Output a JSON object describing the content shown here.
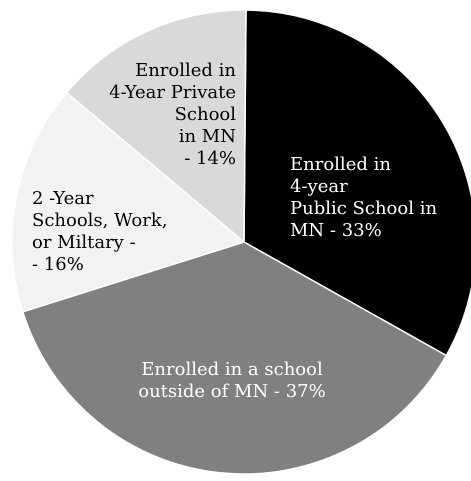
{
  "chart_data": {
    "type": "pie",
    "title": "",
    "slices": [
      {
        "label": "Enrolled in 4-year Public School in MN - 33%",
        "label_lines": [
          "Enrolled in",
          "4-year",
          "Public School in",
          "MN  - 33%"
        ],
        "value": 33,
        "color": "#000000",
        "text_color": "#ffffff"
      },
      {
        "label": "Enrolled in a school outside of MN - 37%",
        "label_lines": [
          "Enrolled in a school",
          "outside of MN - 37%"
        ],
        "value": 37,
        "color": "#808080",
        "text_color": "#ffffff"
      },
      {
        "label": "2 -Year Schools, Work, or Miltary - - 16%",
        "label_lines": [
          "2 -Year",
          "Schools, Work,",
          "or Miltary -",
          "- 16%"
        ],
        "value": 16,
        "color": "#f2f2f2",
        "text_color": "#000000"
      },
      {
        "label": "Enrolled in 4-Year Private School in MN - 14%",
        "label_lines": [
          "Enrolled in",
          "4-Year Private",
          "School",
          "in MN",
          "- 14%"
        ],
        "value": 14,
        "color": "#d9d9d9",
        "text_color": "#000000"
      }
    ]
  }
}
